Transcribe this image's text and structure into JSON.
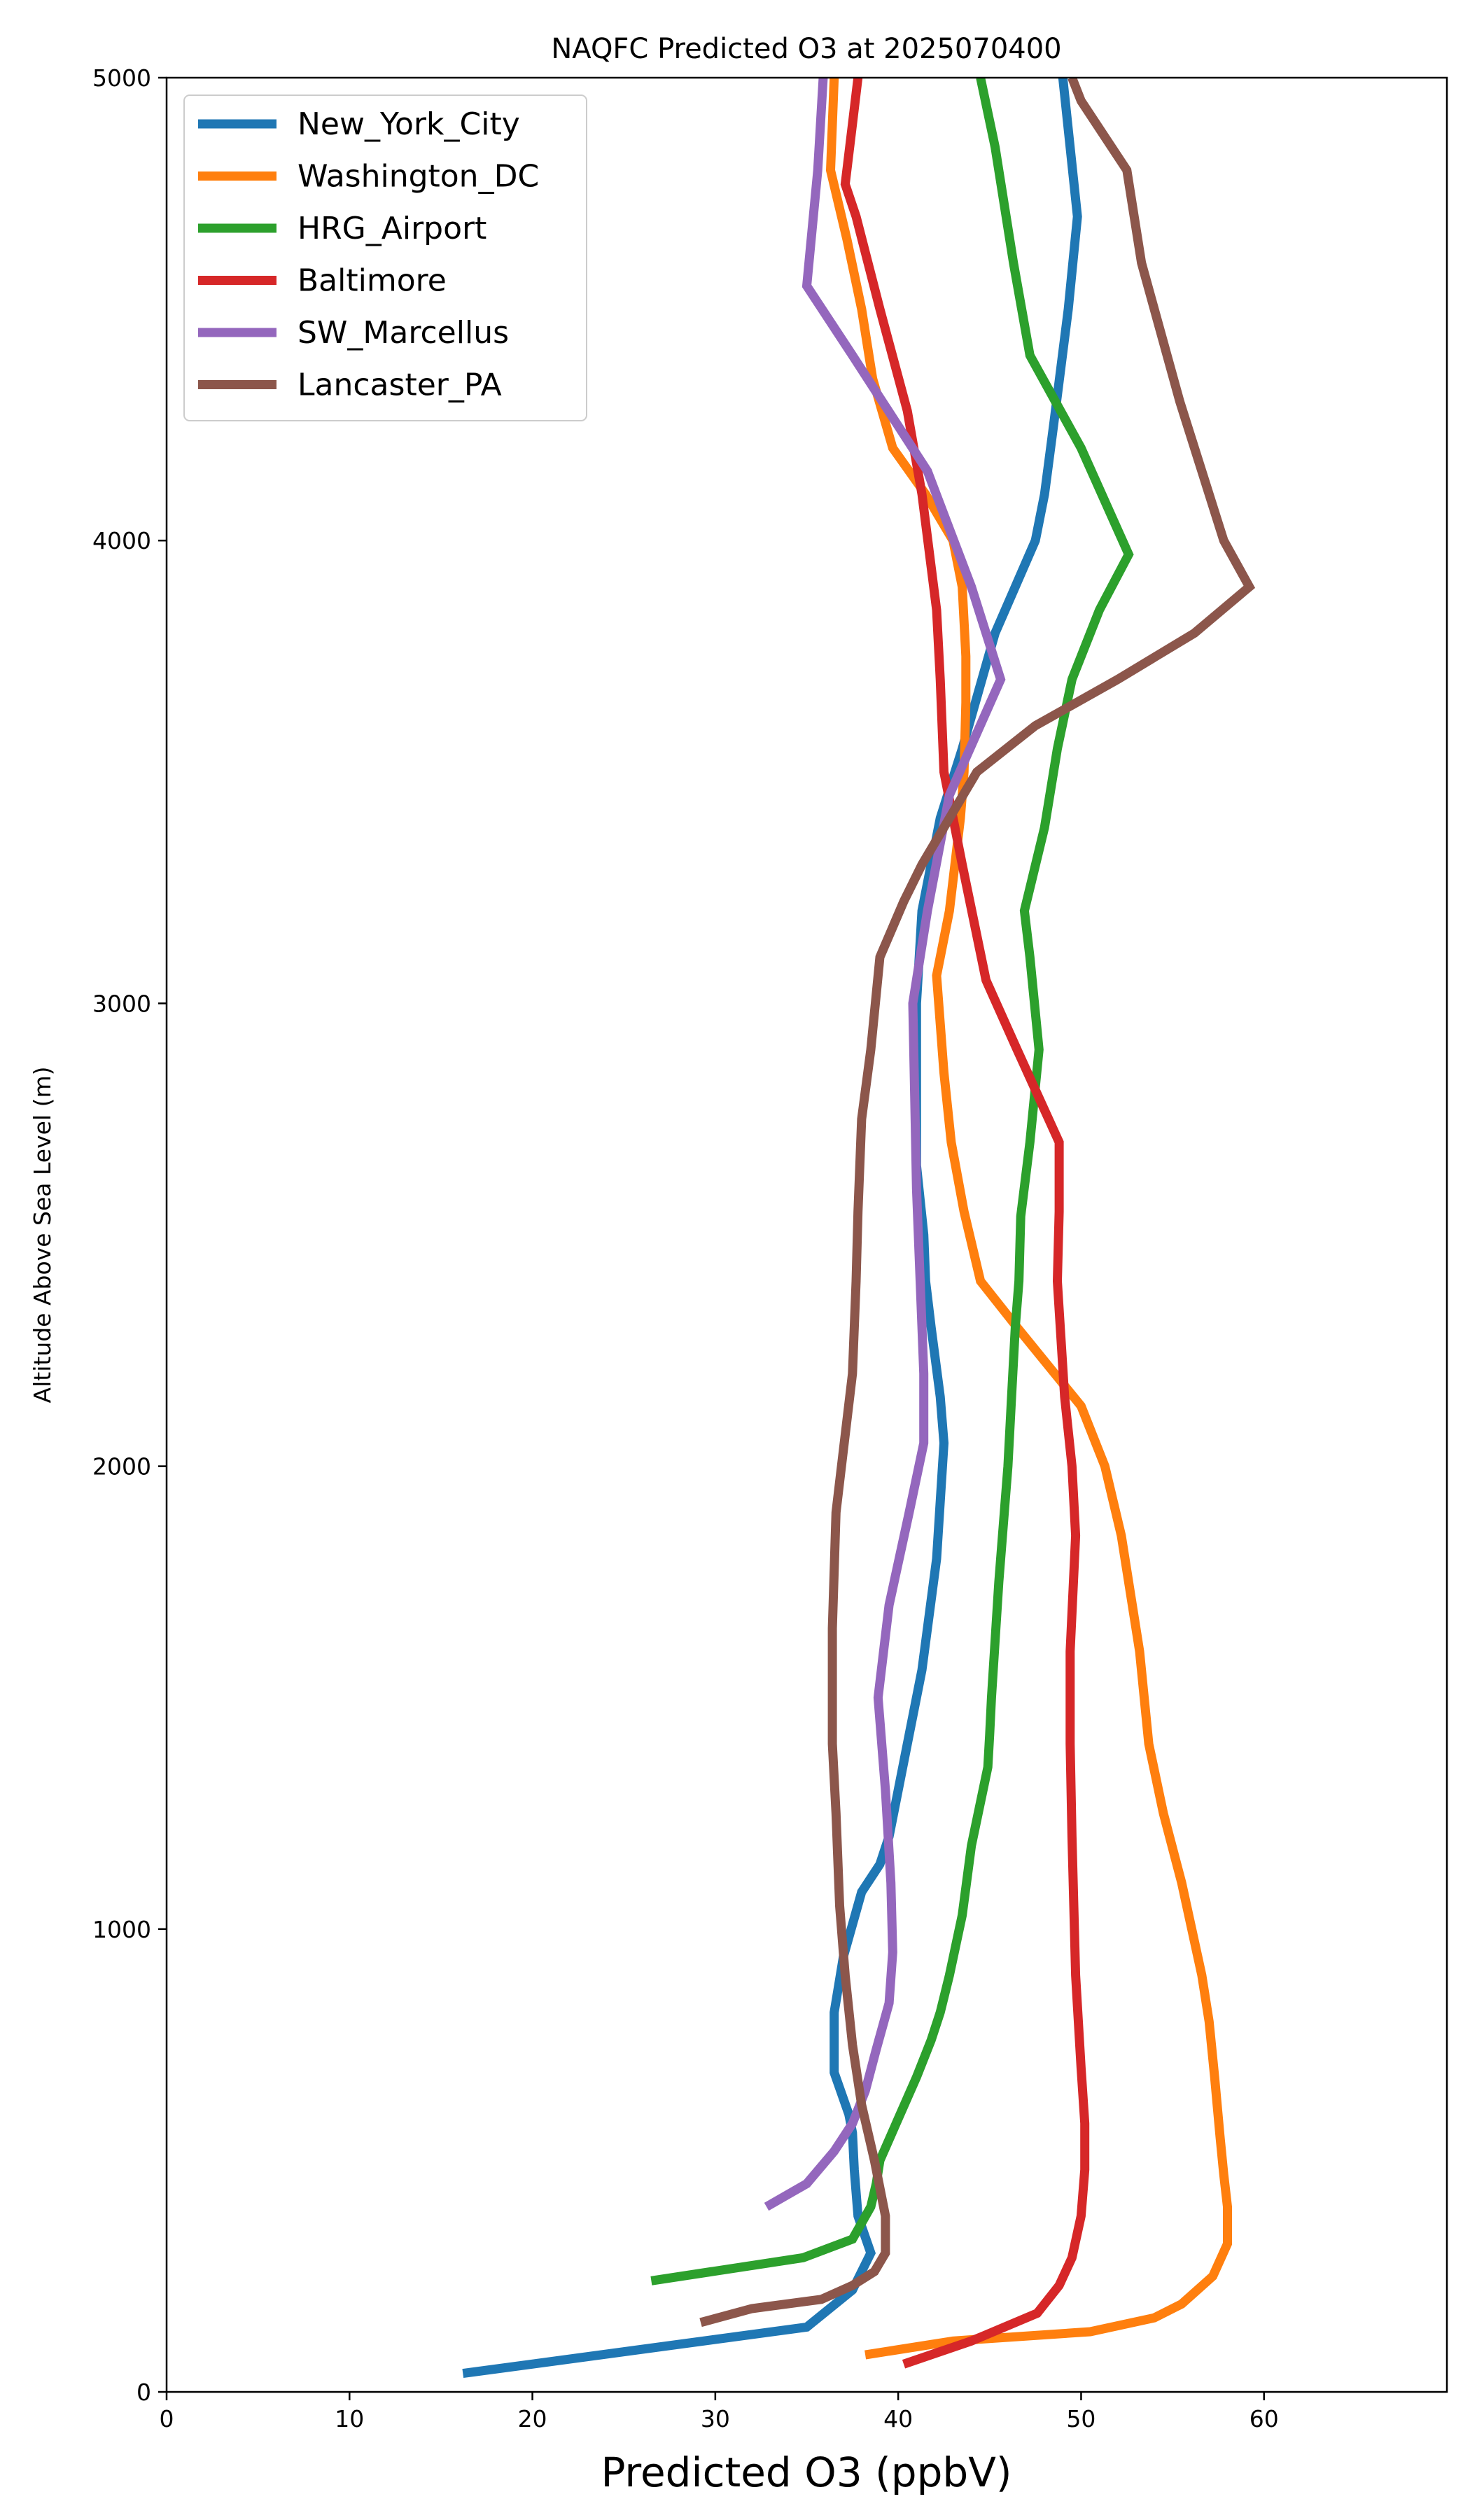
{
  "chart_data": {
    "type": "line",
    "title": "NAQFC Predicted O3 at 2025070400",
    "xlabel": "Predicted O3 (ppbV)",
    "ylabel": "Altitude Above Sea Level (m)",
    "xlim": [
      0,
      70
    ],
    "ylim": [
      0,
      5000
    ],
    "xticks": [
      0,
      10,
      20,
      30,
      40,
      50,
      60
    ],
    "yticks": [
      0,
      1000,
      2000,
      3000,
      4000,
      5000
    ],
    "grid": false,
    "legend_position": "upper-left",
    "series": [
      {
        "name": "New_York_City",
        "color": "#1f77b4",
        "points": [
          [
            16.2,
            40
          ],
          [
            35,
            140
          ],
          [
            37.5,
            220
          ],
          [
            38.5,
            300
          ],
          [
            37.8,
            380
          ],
          [
            37.6,
            480
          ],
          [
            37.5,
            560
          ],
          [
            37.3,
            600
          ],
          [
            36.5,
            690
          ],
          [
            36.5,
            820
          ],
          [
            37,
            940
          ],
          [
            38,
            1080
          ],
          [
            39,
            1140
          ],
          [
            39.5,
            1200
          ],
          [
            40.5,
            1400
          ],
          [
            41.3,
            1560
          ],
          [
            42.1,
            1800
          ],
          [
            42.5,
            2050
          ],
          [
            42.3,
            2150
          ],
          [
            41.8,
            2300
          ],
          [
            41.5,
            2400
          ],
          [
            41.4,
            2500
          ],
          [
            41,
            2650
          ],
          [
            41,
            2800
          ],
          [
            41,
            3000
          ],
          [
            41.3,
            3200
          ],
          [
            42.3,
            3400
          ],
          [
            43.5,
            3550
          ],
          [
            45.3,
            3800
          ],
          [
            47.5,
            4000
          ],
          [
            48,
            4100
          ],
          [
            48.5,
            4250
          ],
          [
            49.3,
            4500
          ],
          [
            49.8,
            4700
          ],
          [
            49,
            5000
          ]
        ]
      },
      {
        "name": "Washington_DC",
        "color": "#ff7f0e",
        "points": [
          [
            38.2,
            80
          ],
          [
            43,
            110
          ],
          [
            50.5,
            130
          ],
          [
            54,
            160
          ],
          [
            55.5,
            190
          ],
          [
            57.2,
            250
          ],
          [
            58,
            320
          ],
          [
            58,
            400
          ],
          [
            57.8,
            470
          ],
          [
            57.6,
            550
          ],
          [
            57.3,
            680
          ],
          [
            57,
            800
          ],
          [
            56.6,
            900
          ],
          [
            55.5,
            1100
          ],
          [
            54.5,
            1250
          ],
          [
            53.7,
            1400
          ],
          [
            53.2,
            1600
          ],
          [
            52.2,
            1850
          ],
          [
            51.3,
            2000
          ],
          [
            50,
            2130
          ],
          [
            46.5,
            2300
          ],
          [
            44.5,
            2400
          ],
          [
            43.6,
            2550
          ],
          [
            42.9,
            2700
          ],
          [
            42.5,
            2850
          ],
          [
            42.1,
            3060
          ],
          [
            42.8,
            3200
          ],
          [
            43.4,
            3400
          ],
          [
            43.6,
            3500
          ],
          [
            43.7,
            3650
          ],
          [
            43.7,
            3750
          ],
          [
            43.5,
            3900
          ],
          [
            43,
            4000
          ],
          [
            41.5,
            4100
          ],
          [
            39.7,
            4200
          ],
          [
            38.6,
            4350
          ],
          [
            38,
            4500
          ],
          [
            37.2,
            4650
          ],
          [
            36.3,
            4800
          ],
          [
            36.5,
            5000
          ]
        ]
      },
      {
        "name": "HRG_Airport",
        "color": "#2ca02c",
        "points": [
          [
            26.5,
            240
          ],
          [
            34.8,
            290
          ],
          [
            37.5,
            330
          ],
          [
            38.5,
            400
          ],
          [
            38.8,
            450
          ],
          [
            39,
            500
          ],
          [
            40,
            590
          ],
          [
            41,
            680
          ],
          [
            41.8,
            760
          ],
          [
            42.3,
            820
          ],
          [
            42.8,
            900
          ],
          [
            43.5,
            1030
          ],
          [
            44,
            1180
          ],
          [
            44.9,
            1350
          ],
          [
            45,
            1420
          ],
          [
            45.1,
            1500
          ],
          [
            45.5,
            1750
          ],
          [
            45.8,
            1900
          ],
          [
            46,
            2000
          ],
          [
            46.2,
            2150
          ],
          [
            46.4,
            2300
          ],
          [
            46.6,
            2400
          ],
          [
            46.7,
            2540
          ],
          [
            47.2,
            2700
          ],
          [
            47.7,
            2900
          ],
          [
            47.2,
            3100
          ],
          [
            46.9,
            3200
          ],
          [
            48,
            3380
          ],
          [
            48.7,
            3550
          ],
          [
            49.5,
            3700
          ],
          [
            51,
            3850
          ],
          [
            52.6,
            3970
          ],
          [
            50,
            4200
          ],
          [
            47.2,
            4400
          ],
          [
            46.3,
            4600
          ],
          [
            45.3,
            4850
          ],
          [
            44.5,
            5000
          ]
        ]
      },
      {
        "name": "Baltimore",
        "color": "#d62728",
        "points": [
          [
            40.3,
            60
          ],
          [
            44,
            110
          ],
          [
            47.6,
            170
          ],
          [
            48.8,
            230
          ],
          [
            49.5,
            290
          ],
          [
            50,
            380
          ],
          [
            50.2,
            480
          ],
          [
            50.2,
            580
          ],
          [
            50,
            700
          ],
          [
            49.7,
            900
          ],
          [
            49.6,
            1050
          ],
          [
            49.5,
            1200
          ],
          [
            49.4,
            1400
          ],
          [
            49.4,
            1600
          ],
          [
            49.7,
            1850
          ],
          [
            49.5,
            2000
          ],
          [
            49.1,
            2150
          ],
          [
            48.7,
            2400
          ],
          [
            48.8,
            2550
          ],
          [
            48.8,
            2700
          ],
          [
            46.5,
            2900
          ],
          [
            44.8,
            3050
          ],
          [
            43.5,
            3300
          ],
          [
            42.5,
            3500
          ],
          [
            42.3,
            3700
          ],
          [
            42.1,
            3850
          ],
          [
            41.3,
            4100
          ],
          [
            40.5,
            4280
          ],
          [
            39,
            4500
          ],
          [
            37.7,
            4700
          ],
          [
            37.1,
            4770
          ],
          [
            37.5,
            4900
          ],
          [
            37.8,
            5000
          ]
        ]
      },
      {
        "name": "SW_Marcellus",
        "color": "#9467bd",
        "points": [
          [
            32.8,
            400
          ],
          [
            35,
            450
          ],
          [
            36.5,
            520
          ],
          [
            37.5,
            580
          ],
          [
            38.2,
            650
          ],
          [
            38.8,
            740
          ],
          [
            39.5,
            840
          ],
          [
            39.7,
            950
          ],
          [
            39.6,
            1100
          ],
          [
            39.3,
            1300
          ],
          [
            38.9,
            1500
          ],
          [
            39.5,
            1700
          ],
          [
            40.6,
            1900
          ],
          [
            41.4,
            2050
          ],
          [
            41.4,
            2200
          ],
          [
            41.2,
            2400
          ],
          [
            41,
            2600
          ],
          [
            40.9,
            2800
          ],
          [
            40.8,
            3000
          ],
          [
            41.6,
            3200
          ],
          [
            42.8,
            3450
          ],
          [
            45.6,
            3700
          ],
          [
            44,
            3900
          ],
          [
            41.6,
            4150
          ],
          [
            37.5,
            4400
          ],
          [
            35,
            4550
          ],
          [
            35.6,
            4800
          ],
          [
            35.9,
            5000
          ]
        ]
      },
      {
        "name": "Lancaster_PA",
        "color": "#8c564b",
        "points": [
          [
            29.2,
            150
          ],
          [
            32,
            180
          ],
          [
            35.8,
            200
          ],
          [
            37.5,
            230
          ],
          [
            38.7,
            260
          ],
          [
            39.3,
            300
          ],
          [
            39.3,
            380
          ],
          [
            38.7,
            500
          ],
          [
            38,
            620
          ],
          [
            37.5,
            750
          ],
          [
            37.1,
            900
          ],
          [
            36.8,
            1050
          ],
          [
            36.6,
            1250
          ],
          [
            36.4,
            1400
          ],
          [
            36.4,
            1650
          ],
          [
            36.6,
            1900
          ],
          [
            36.9,
            2000
          ],
          [
            37.5,
            2200
          ],
          [
            37.7,
            2400
          ],
          [
            37.8,
            2550
          ],
          [
            38,
            2750
          ],
          [
            38.5,
            2900
          ],
          [
            39,
            3100
          ],
          [
            40.3,
            3220
          ],
          [
            41.3,
            3300
          ],
          [
            44.3,
            3500
          ],
          [
            47.5,
            3600
          ],
          [
            52,
            3700
          ],
          [
            56.2,
            3800
          ],
          [
            59.2,
            3900
          ],
          [
            57.8,
            4000
          ],
          [
            55.4,
            4300
          ],
          [
            53.3,
            4600
          ],
          [
            52.5,
            4800
          ],
          [
            50,
            4950
          ],
          [
            49.5,
            5000
          ]
        ]
      }
    ]
  }
}
